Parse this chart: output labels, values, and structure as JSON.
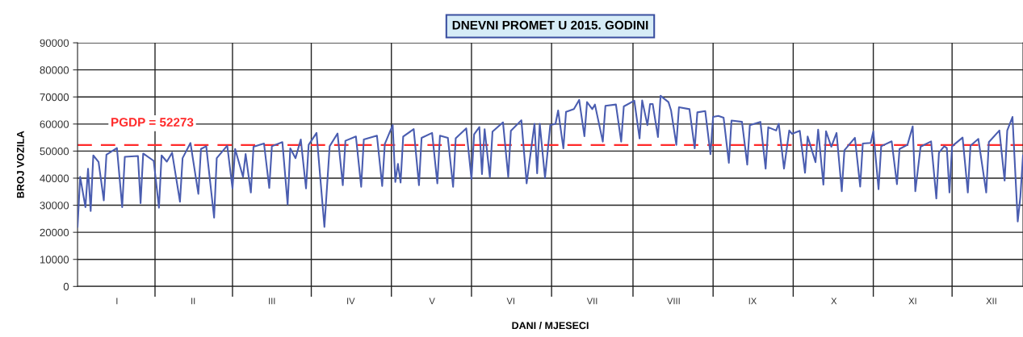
{
  "chart_data": {
    "type": "line",
    "title": "DNEVNI PROMET U 2015. GODINI",
    "xlabel": "DANI / MJESECI",
    "ylabel": "BROJ VOZILA",
    "categories": [
      null,
      null,
      null,
      null,
      null,
      null,
      null,
      null,
      null,
      null,
      null,
      null,
      null,
      null,
      null,
      "I",
      null,
      null,
      null,
      null,
      null,
      null,
      null,
      null,
      null,
      null,
      null,
      null,
      null,
      null,
      null,
      null,
      null,
      null,
      null,
      null,
      null,
      null,
      null,
      null,
      null,
      null,
      null,
      null,
      "II",
      null,
      null,
      null,
      null,
      null,
      null,
      null,
      null,
      null,
      null,
      null,
      null,
      null,
      null,
      null,
      null,
      null,
      null,
      null,
      null,
      null,
      null,
      null,
      null,
      null,
      null,
      null,
      null,
      null,
      "III",
      null,
      null,
      null,
      null,
      null,
      null,
      null,
      null,
      null,
      null,
      null,
      null,
      null,
      null,
      null,
      null,
      null,
      null,
      null,
      null,
      null,
      null,
      null,
      null,
      null,
      null,
      null,
      null,
      null,
      "IV",
      null,
      null,
      null,
      null,
      null,
      null,
      null,
      null,
      null,
      null,
      null,
      null,
      null,
      null,
      null,
      null,
      null,
      null,
      null,
      null,
      null,
      null,
      null,
      null,
      null,
      null,
      null,
      null,
      null,
      null,
      "V",
      null,
      null,
      null,
      null,
      null,
      null,
      null,
      null,
      null,
      null,
      null,
      null,
      null,
      null,
      null,
      null,
      null,
      null,
      null,
      null,
      null,
      null,
      null,
      null,
      null,
      null,
      null,
      null,
      null,
      "VI",
      null,
      null,
      null,
      null,
      null,
      null,
      null,
      null,
      null,
      null,
      null,
      null,
      null,
      null,
      null,
      null,
      null,
      null,
      null,
      null,
      null,
      null,
      null,
      null,
      null,
      null,
      null,
      null,
      null,
      null,
      "VII",
      null,
      null,
      null,
      null,
      null,
      null,
      null,
      null,
      null,
      null,
      null,
      null,
      null,
      null,
      null,
      null,
      null,
      null,
      null,
      null,
      null,
      null,
      null,
      null,
      null,
      null,
      null,
      null,
      null,
      null,
      "VIII",
      null,
      null,
      null,
      null,
      null,
      null,
      null,
      null,
      null,
      null,
      null,
      null,
      null,
      null,
      null,
      null,
      null,
      null,
      null,
      null,
      null,
      null,
      null,
      null,
      null,
      null,
      null,
      null,
      null,
      "IX",
      null,
      null,
      null,
      null,
      null,
      null,
      null,
      null,
      null,
      null,
      null,
      null,
      null,
      null,
      null,
      null,
      null,
      null,
      null,
      null,
      null,
      null,
      null,
      null,
      null,
      null,
      null,
      null,
      null,
      null,
      "X",
      null,
      null,
      null,
      null,
      null,
      null,
      null,
      null,
      null,
      null,
      null,
      null,
      null,
      null,
      null,
      null,
      null,
      null,
      null,
      null,
      null,
      null,
      null,
      null,
      null,
      null,
      null,
      null,
      null,
      "XI",
      null,
      null,
      null,
      null,
      null,
      null,
      null,
      null,
      null,
      null,
      null,
      null,
      null,
      null,
      null,
      null,
      null,
      null,
      null,
      null,
      null,
      null,
      null,
      null,
      null,
      null,
      null,
      null,
      null,
      "XII",
      null,
      null,
      null,
      null,
      null,
      null,
      null,
      null,
      null,
      null,
      null,
      null
    ],
    "series": [
      {
        "color": "#4a5db0",
        "values": [
          22000,
          40500,
          null,
          29300,
          43500,
          27900,
          48400,
          null,
          46000,
          null,
          31800,
          48700,
          null,
          null,
          null,
          51100,
          null,
          29300,
          47900,
          null,
          null,
          null,
          null,
          48200,
          30800,
          49100,
          null,
          null,
          null,
          46400,
          null,
          29100,
          48400,
          null,
          46100,
          null,
          49400,
          null,
          null,
          31300,
          47400,
          null,
          null,
          53000,
          null,
          null,
          34200,
          50800,
          null,
          51800,
          null,
          null,
          25400,
          47400,
          null,
          null,
          null,
          52000,
          null,
          36200,
          50800,
          null,
          null,
          40500,
          48900,
          null,
          34700,
          51600,
          null,
          null,
          null,
          52800,
          null,
          36400,
          51800,
          null,
          null,
          null,
          53300,
          null,
          30300,
          51000,
          null,
          47400,
          null,
          54300,
          null,
          36200,
          52300,
          null,
          null,
          56700,
          null,
          null,
          22000,
          null,
          51800,
          null,
          null,
          56500,
          null,
          37400,
          53800,
          null,
          null,
          null,
          55400,
          null,
          36800,
          54300,
          null,
          null,
          null,
          null,
          55700,
          null,
          37100,
          52600,
          null,
          null,
          59600,
          38600,
          45300,
          38400,
          55400,
          null,
          null,
          null,
          58100,
          null,
          37400,
          54900,
          null,
          null,
          null,
          56700,
          null,
          38100,
          55700,
          null,
          null,
          54900,
          null,
          36800,
          54700,
          null,
          null,
          null,
          58400,
          null,
          39600,
          56200,
          null,
          58900,
          41500,
          58100,
          null,
          40300,
          57200,
          null,
          null,
          null,
          60600,
          null,
          40500,
          57500,
          null,
          null,
          null,
          61400,
          null,
          38100,
          null,
          null,
          60100,
          41800,
          60100,
          null,
          40100,
          null,
          59600,
          null,
          60100,
          65000,
          null,
          51000,
          64500,
          null,
          null,
          65500,
          null,
          68900,
          null,
          55500,
          68100,
          null,
          65500,
          67200,
          null,
          null,
          53500,
          66700,
          null,
          null,
          null,
          67200,
          null,
          53500,
          66500,
          null,
          null,
          null,
          68600,
          null,
          54700,
          68700,
          null,
          59600,
          67400,
          67400,
          null,
          55200,
          70400,
          null,
          null,
          68100,
          65000,
          null,
          52300,
          66200,
          null,
          null,
          null,
          65500,
          null,
          51000,
          64300,
          null,
          null,
          64800,
          null,
          48900,
          62600,
          null,
          63000,
          null,
          62300,
          null,
          45700,
          61300,
          null,
          null,
          null,
          60800,
          null,
          45000,
          59600,
          null,
          null,
          null,
          60800,
          null,
          43500,
          58800,
          null,
          null,
          57600,
          60100,
          null,
          43500,
          null,
          57600,
          56400,
          null,
          null,
          57500,
          null,
          42000,
          55400,
          null,
          null,
          45900,
          57900,
          null,
          37600,
          57300,
          null,
          51600,
          null,
          56700,
          null,
          35200,
          50300,
          null,
          null,
          null,
          54900,
          null,
          36900,
          52800,
          null,
          null,
          53000,
          57300,
          null,
          35900,
          51800,
          null,
          null,
          null,
          53600,
          null,
          37800,
          50800,
          null,
          null,
          52300,
          null,
          59100,
          35200,
          null,
          51600,
          null,
          null,
          null,
          53600,
          null,
          32500,
          49400,
          null,
          51800,
          51100,
          34700,
          51800,
          null,
          null,
          null,
          55000,
          null,
          34700,
          52000,
          null,
          null,
          54500,
          null,
          null,
          34700,
          53300,
          null,
          null,
          null,
          57600,
          null,
          39100,
          57600,
          null,
          62600,
          null,
          24000,
          33200,
          48400
        ]
      }
    ],
    "ylim": [
      0,
      90000
    ],
    "yticks": [
      0,
      10000,
      20000,
      30000,
      40000,
      50000,
      60000,
      70000,
      80000,
      90000
    ],
    "grid": true,
    "line_style": "solid",
    "marker": "none",
    "ref_lines": [
      {
        "axis": "y",
        "value": 52273,
        "label": "PGDP = 52273",
        "color": "#ff2a2a",
        "line_style": "dashed"
      }
    ]
  }
}
